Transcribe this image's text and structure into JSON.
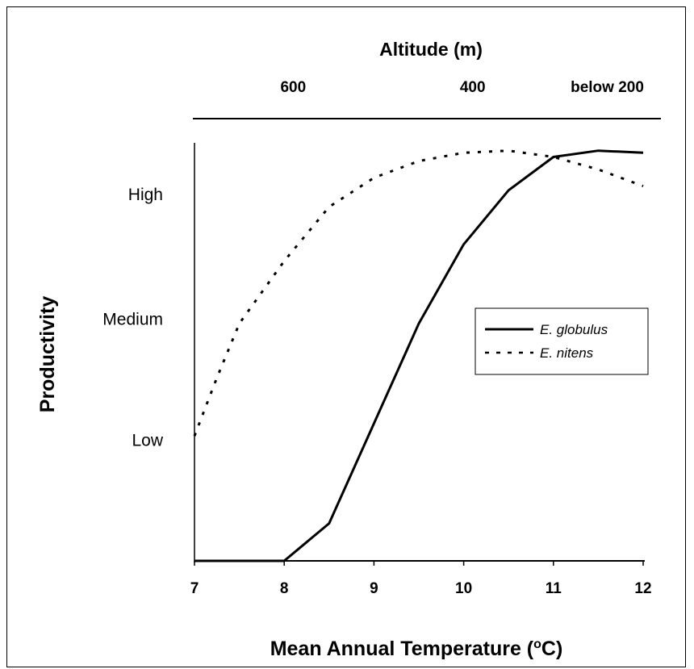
{
  "chart_data": {
    "type": "line",
    "xlabel": "Mean Annual Temperature",
    "xlabel_unit_base": "C",
    "xlabel_unit_sup": "o",
    "ylabel": "Productivity",
    "xlim": [
      7,
      12
    ],
    "ylim": [
      0,
      100
    ],
    "x_ticks": [
      7,
      8,
      9,
      10,
      11,
      12
    ],
    "y_ticks": [
      {
        "label": "Low",
        "value": 29
      },
      {
        "label": "Medium",
        "value": 58
      },
      {
        "label": "High",
        "value": 88
      }
    ],
    "top_axis": {
      "title": "Altitude (m)",
      "labels": [
        {
          "text": "600",
          "x": 8.1
        },
        {
          "text": "400",
          "x": 10.1
        },
        {
          "text": "below 200",
          "x": 11.6
        }
      ]
    },
    "legend_position": "center-right",
    "series": [
      {
        "name": "E. globulus",
        "style": "solid",
        "color": "#000000",
        "x": [
          7,
          8,
          8.5,
          9,
          9.5,
          10,
          10.5,
          11,
          11.5,
          12
        ],
        "y": [
          0,
          0,
          9,
          33,
          57,
          76,
          89,
          97,
          98.5,
          98
        ]
      },
      {
        "name": "E. nitens",
        "style": "dashed",
        "color": "#000000",
        "x": [
          7,
          7.25,
          7.5,
          8,
          8.5,
          9,
          9.5,
          10,
          10.5,
          11,
          11.5,
          12
        ],
        "y": [
          30,
          44,
          57,
          72,
          85,
          92,
          96,
          98,
          98.5,
          97,
          94,
          90
        ]
      }
    ]
  }
}
